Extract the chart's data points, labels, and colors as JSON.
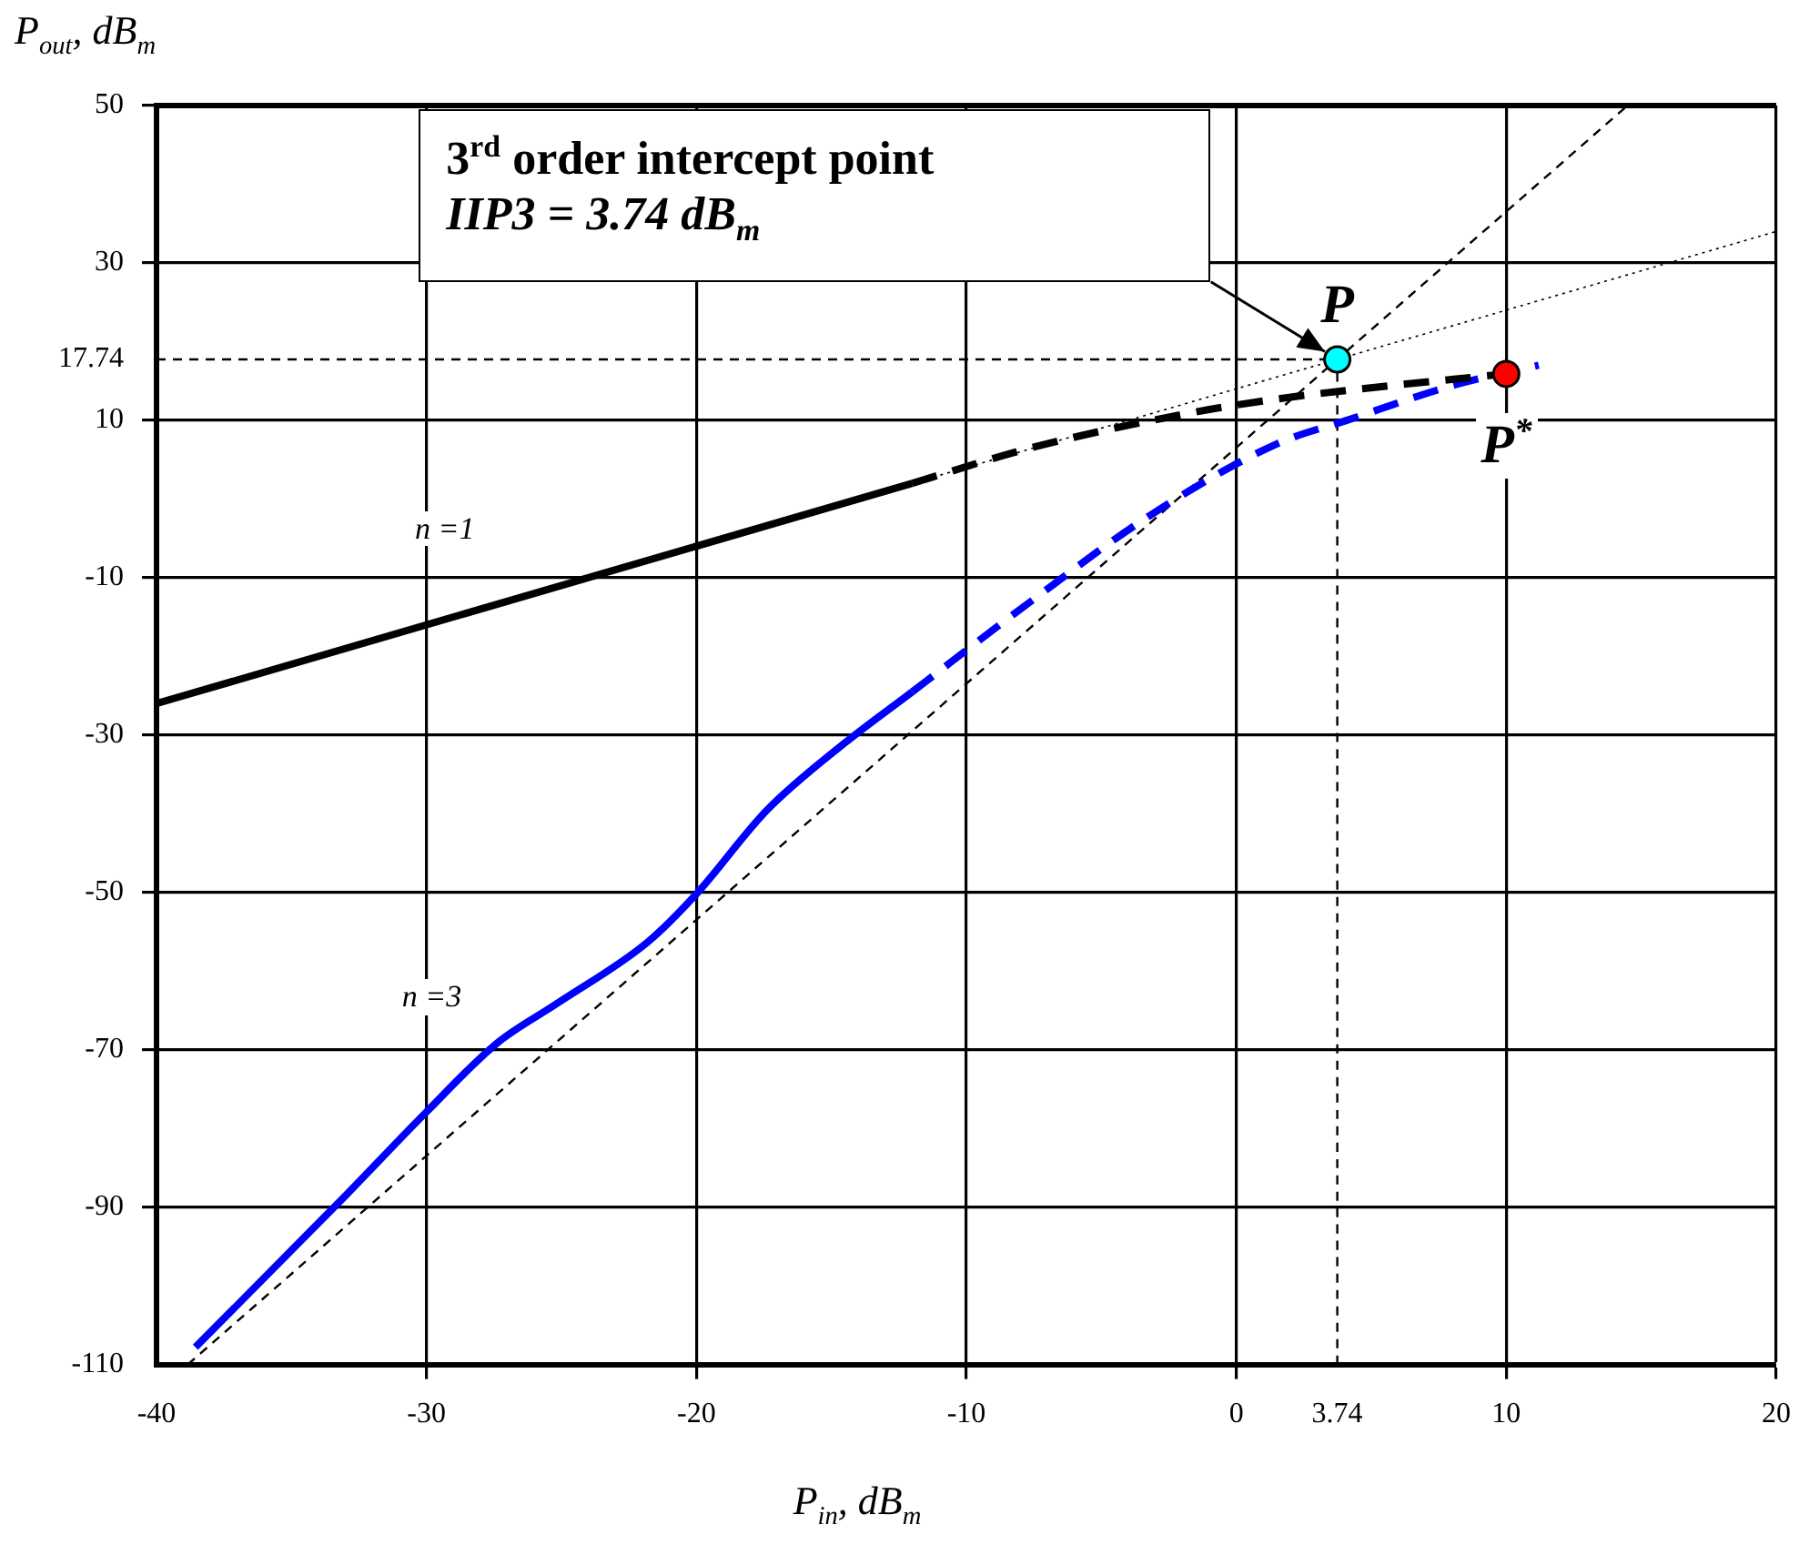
{
  "chart_data": {
    "type": "line",
    "xlabel": "P$_{in}$,  dB$_{m}$",
    "ylabel": "P$_{out}$,  dB$_{m}$",
    "xlim": [
      -40,
      20
    ],
    "xticks": [
      -40,
      -30,
      -20,
      -10,
      0,
      3.74,
      10,
      20
    ],
    "ylim": [
      -110,
      50
    ],
    "yticks": [
      -110,
      -90,
      -70,
      -50,
      -30,
      -10,
      10,
      17.74,
      30,
      50
    ],
    "grid": true,
    "legend": false,
    "series": [
      {
        "color": "#000000",
        "line_style": "solid",
        "marker": "none",
        "x": [
          -40,
          -12
        ],
        "values": [
          -26,
          2
        ]
      },
      {
        "color": "#000000",
        "line_style": "dashed",
        "marker": "none",
        "x": [
          -12,
          -7.6,
          -1.6,
          1.5,
          4.1,
          10
        ],
        "values": [
          2,
          6.5,
          11,
          12.7,
          13.8,
          15.9
        ]
      },
      {
        "color": "#0000ff",
        "line_style": "solid",
        "marker": "none",
        "x": [
          -38.56,
          -33.1,
          -30,
          -27.4,
          -25.2,
          -21.8,
          -20,
          -17.4,
          -14.5,
          -12
        ],
        "values": [
          -107.8,
          -88.9,
          -77.9,
          -69.2,
          -64.2,
          -56.3,
          -50.2,
          -39.6,
          -31,
          -24.5
        ]
      },
      {
        "color": "#0000ff",
        "line_style": "dashed",
        "marker": "none",
        "x": [
          -12,
          -7.8,
          -3.2,
          1.5,
          4.1,
          8.1,
          11.2
        ],
        "values": [
          -24.5,
          -13.5,
          -2.1,
          7,
          10,
          14.5,
          17
        ]
      },
      {
        "color": "#000000",
        "line_style": "dotted",
        "marker": "none",
        "x": [
          -12,
          20
        ],
        "values": [
          2,
          34
        ]
      },
      {
        "color": "#000000",
        "line_style": "dashed",
        "marker": "none",
        "x": [
          -38.84,
          14.49
        ],
        "values": [
          -110,
          50
        ]
      },
      {
        "color": "#000000",
        "line_style": "dashed",
        "marker": "none",
        "x": [
          -40,
          3.74
        ],
        "values": [
          17.74,
          17.74
        ]
      },
      {
        "color": "#000000",
        "line_style": "dashed",
        "marker": "none",
        "x": [
          3.74,
          3.74
        ],
        "values": [
          -110,
          17.74
        ]
      },
      {
        "type": "scatter",
        "color": "#00ffff",
        "marker": "circle",
        "x": [
          3.74
        ],
        "values": [
          17.74
        ]
      },
      {
        "type": "scatter",
        "color": "#ff0000",
        "marker": "circle",
        "x": [
          10
        ],
        "values": [
          15.9
        ]
      }
    ],
    "annotations": [
      "3$^{rd}$ order intercept point\nIIP3 = 3.74 dB$_{m}$",
      {
        "text": "P",
        "x": 3.74,
        "y": 17.74
      },
      {
        "text": "P$^{*}$",
        "x": 10,
        "y": 15.9
      },
      "n =1",
      "n =3"
    ]
  }
}
